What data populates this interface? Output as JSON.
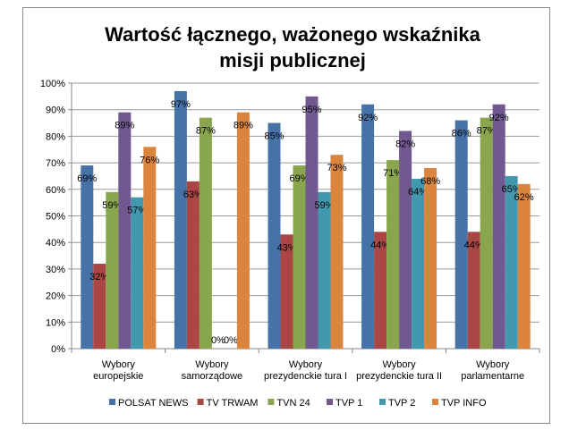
{
  "chart_data": {
    "type": "bar",
    "title": "Wartość łącznego, ważonego wskaźnika misji publicznej",
    "title_lines": [
      "Wartość łącznego, ważonego wskaźnika",
      "misji publicznej"
    ],
    "categories": [
      [
        "Wybory",
        "europejskie"
      ],
      [
        "Wybory",
        "samorządowe"
      ],
      [
        "Wybory",
        "prezydenckie tura I"
      ],
      [
        "Wybory",
        "prezydenckie tura II"
      ],
      [
        "Wybory",
        "parlamentarne"
      ]
    ],
    "ylim": [
      0,
      100
    ],
    "yticks": [
      "0%",
      "10%",
      "20%",
      "30%",
      "40%",
      "50%",
      "60%",
      "70%",
      "80%",
      "90%",
      "100%"
    ],
    "grid": true,
    "legend": "bottom",
    "series": [
      {
        "name": "POLSAT NEWS",
        "color": "#4572A7",
        "values": [
          69,
          97,
          85,
          92,
          86
        ]
      },
      {
        "name": "TV TRWAM",
        "color": "#AA4643",
        "values": [
          32,
          63,
          43,
          44,
          44
        ]
      },
      {
        "name": "TVN 24",
        "color": "#89A54E",
        "values": [
          59,
          87,
          69,
          71,
          87
        ]
      },
      {
        "name": "TVP 1",
        "color": "#71588F",
        "values": [
          89,
          0,
          95,
          82,
          92
        ]
      },
      {
        "name": "TVP 2",
        "color": "#4198AF",
        "values": [
          57,
          0,
          59,
          64,
          65
        ]
      },
      {
        "name": "TVP INFO",
        "color": "#DB843D",
        "values": [
          76,
          89,
          73,
          68,
          62
        ]
      }
    ]
  }
}
